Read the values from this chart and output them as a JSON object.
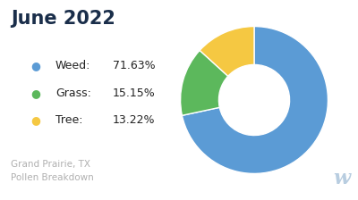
{
  "title": "June 2022",
  "subtitle": "Grand Prairie, TX\nPollen Breakdown",
  "labels": [
    "Weed",
    "Grass",
    "Tree"
  ],
  "values": [
    71.63,
    15.15,
    13.22
  ],
  "colors": [
    "#5B9BD5",
    "#5CB85C",
    "#F5C842"
  ],
  "background_color": "#ffffff",
  "title_color": "#1a2e4a",
  "subtitle_color": "#b0b0b0",
  "watermark_color": "#b8cde0",
  "legend_item_labels": [
    "Weed:",
    "Grass:",
    "Tree:"
  ],
  "legend_item_values": [
    "71.63%",
    "15.15%",
    "13.22%"
  ]
}
